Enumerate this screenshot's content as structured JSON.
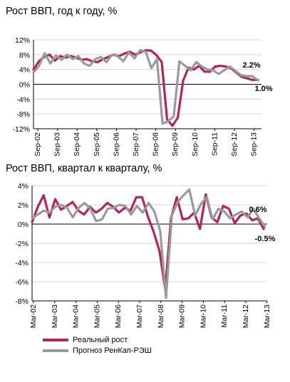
{
  "chart_data": [
    {
      "type": "line",
      "title": "Рост ВВП, год к году, %",
      "ylim": [
        -12,
        12
      ],
      "yticks": [
        "12%",
        "8%",
        "4%",
        "0%",
        "-4%",
        "-8%",
        "-12%"
      ],
      "ytick_values": [
        12,
        8,
        4,
        0,
        -4,
        -8,
        -12
      ],
      "xticks": [
        "Sep-02",
        "Sep-03",
        "Sep-04",
        "Sep-05",
        "Sep-06",
        "Sep-07",
        "Sep-08",
        "Sep-09",
        "Sep-10",
        "Sep-11",
        "Sep-12",
        "Sep-13"
      ],
      "series": [
        {
          "name": "Реальный рост",
          "color": "#b5225e",
          "values": [
            4.0,
            6.2,
            7.4,
            8.0,
            6.4,
            7.6,
            7.2,
            7.6,
            7.2,
            6.6,
            6.8,
            6.2,
            6.0,
            6.8,
            7.4,
            8.0,
            7.6,
            8.3,
            8.8,
            8.0,
            8.6,
            9.2,
            9.1,
            7.9,
            6.0,
            -9.5,
            -11.2,
            -9.0,
            1.0,
            4.5,
            4.0,
            5.0,
            3.4,
            3.4,
            4.8,
            5.0,
            4.8,
            4.3,
            3.1,
            2.0,
            1.6,
            1.2,
            1.2
          ]
        },
        {
          "name": "Прогноз РенКап-РЭШ",
          "color": "#9a9a9a",
          "values": [
            3.2,
            5.0,
            8.4,
            5.6,
            7.8,
            6.6,
            8.0,
            6.8,
            7.6,
            5.6,
            5.0,
            6.8,
            7.4,
            6.0,
            8.0,
            7.6,
            6.2,
            8.6,
            7.0,
            9.2,
            8.8,
            4.4,
            6.8,
            -10.6,
            -10.0,
            -8.6,
            6.2,
            5.0,
            3.8,
            6.0,
            4.8,
            4.0,
            3.8,
            2.8,
            3.8,
            4.8,
            3.6,
            2.5,
            2.2,
            2.2,
            1.0
          ]
        }
      ],
      "annotations": [
        "2.2%",
        "1.0%"
      ]
    },
    {
      "type": "line",
      "title": "Рост ВВП, квартал к кварталу, %",
      "ylim": [
        -8,
        4
      ],
      "yticks": [
        "4%",
        "2%",
        "0%",
        "-2%",
        "-4%",
        "-6%",
        "-8%"
      ],
      "ytick_values": [
        4,
        2,
        0,
        -2,
        -4,
        -6,
        -8
      ],
      "xticks": [
        "Mar-02",
        "Mar-03",
        "Mar-04",
        "Mar-05",
        "Mar-06",
        "Mar-07",
        "Mar-08",
        "Mar-09",
        "Mar-10",
        "Mar-11",
        "Mar-12",
        "Mar-13"
      ],
      "series": [
        {
          "name": "Реальный рост",
          "color": "#b5225e",
          "values": [
            0.2,
            1.8,
            3.0,
            0.7,
            2.6,
            1.5,
            1.9,
            2.3,
            1.4,
            1.0,
            1.8,
            1.2,
            1.6,
            2.2,
            1.8,
            1.2,
            1.7,
            1.4,
            2.8,
            2.8,
            0.8,
            -0.8,
            -2.8,
            -6.8,
            0.6,
            2.8,
            0.5,
            0.6,
            1.2,
            -0.5,
            3.1,
            0.7,
            0.2,
            1.9,
            1.6,
            0.1,
            0.9,
            1.1,
            0.4,
            0.6,
            -0.5
          ]
        },
        {
          "name": "Прогноз РенКап-РЭШ",
          "color": "#9a9a9a",
          "values": [
            0.6,
            1.0,
            1.4,
            1.2,
            1.8,
            2.0,
            1.7,
            0.7,
            1.7,
            2.2,
            1.6,
            0.3,
            0.5,
            1.6,
            1.7,
            2.0,
            1.9,
            1.0,
            1.9,
            1.2,
            2.2,
            1.3,
            -0.7,
            -7.7,
            0.9,
            2.3,
            3.0,
            3.6,
            0.9,
            2.1,
            2.8,
            0.5,
            1.6,
            1.3,
            0.6,
            1.0,
            1.3,
            0.7,
            1.6,
            0.6,
            -0.3
          ]
        }
      ],
      "annotations": [
        "0.6%",
        "-0.5%"
      ]
    }
  ],
  "legend": {
    "items": [
      {
        "label": "Реальный рост",
        "color": "#b5225e"
      },
      {
        "label": "Прогноз РенКап-РЭШ",
        "color": "#9a9a9a"
      }
    ]
  }
}
